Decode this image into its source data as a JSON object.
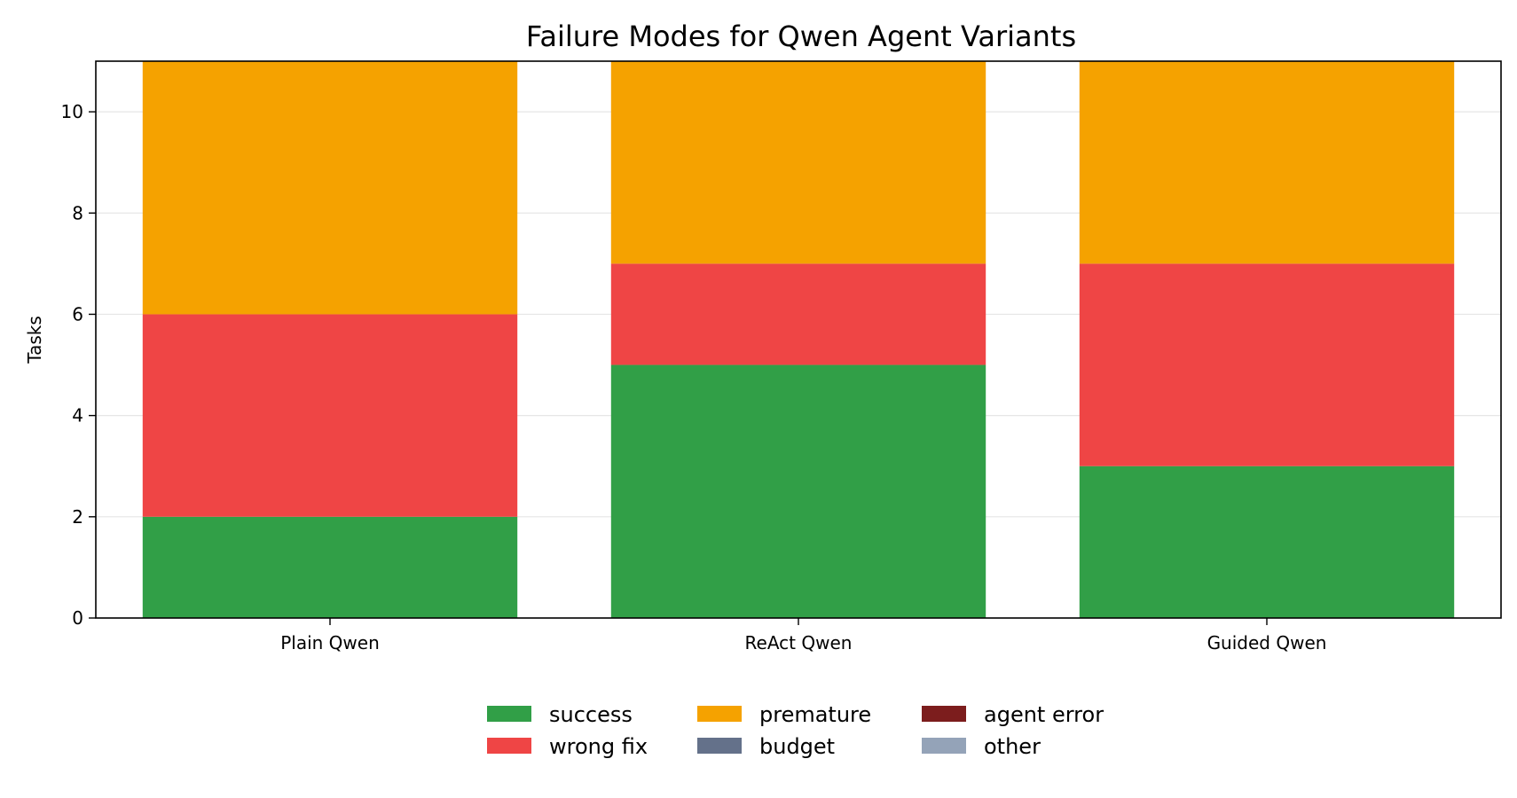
{
  "chart_data": {
    "type": "bar",
    "stacked": true,
    "title": "Failure Modes for Qwen Agent Variants",
    "xlabel": "",
    "ylabel": "Tasks",
    "categories": [
      "Plain Qwen",
      "ReAct Qwen",
      "Guided Qwen"
    ],
    "ylim": [
      0,
      11
    ],
    "yticks": [
      0,
      2,
      4,
      6,
      8,
      10
    ],
    "grid": true,
    "legend_position": "bottom-center",
    "series": [
      {
        "name": "success",
        "color": "#319f47",
        "values": [
          2,
          5,
          3
        ]
      },
      {
        "name": "wrong fix",
        "color": "#ef4545",
        "values": [
          4,
          2,
          4
        ]
      },
      {
        "name": "premature",
        "color": "#f5a200",
        "values": [
          5,
          4,
          4
        ]
      },
      {
        "name": "budget",
        "color": "#64718a",
        "values": [
          0,
          0,
          0
        ]
      },
      {
        "name": "agent error",
        "color": "#7c1d1d",
        "values": [
          0,
          0,
          0
        ]
      },
      {
        "name": "other",
        "color": "#94a3b8",
        "values": [
          0,
          0,
          0
        ]
      }
    ]
  }
}
